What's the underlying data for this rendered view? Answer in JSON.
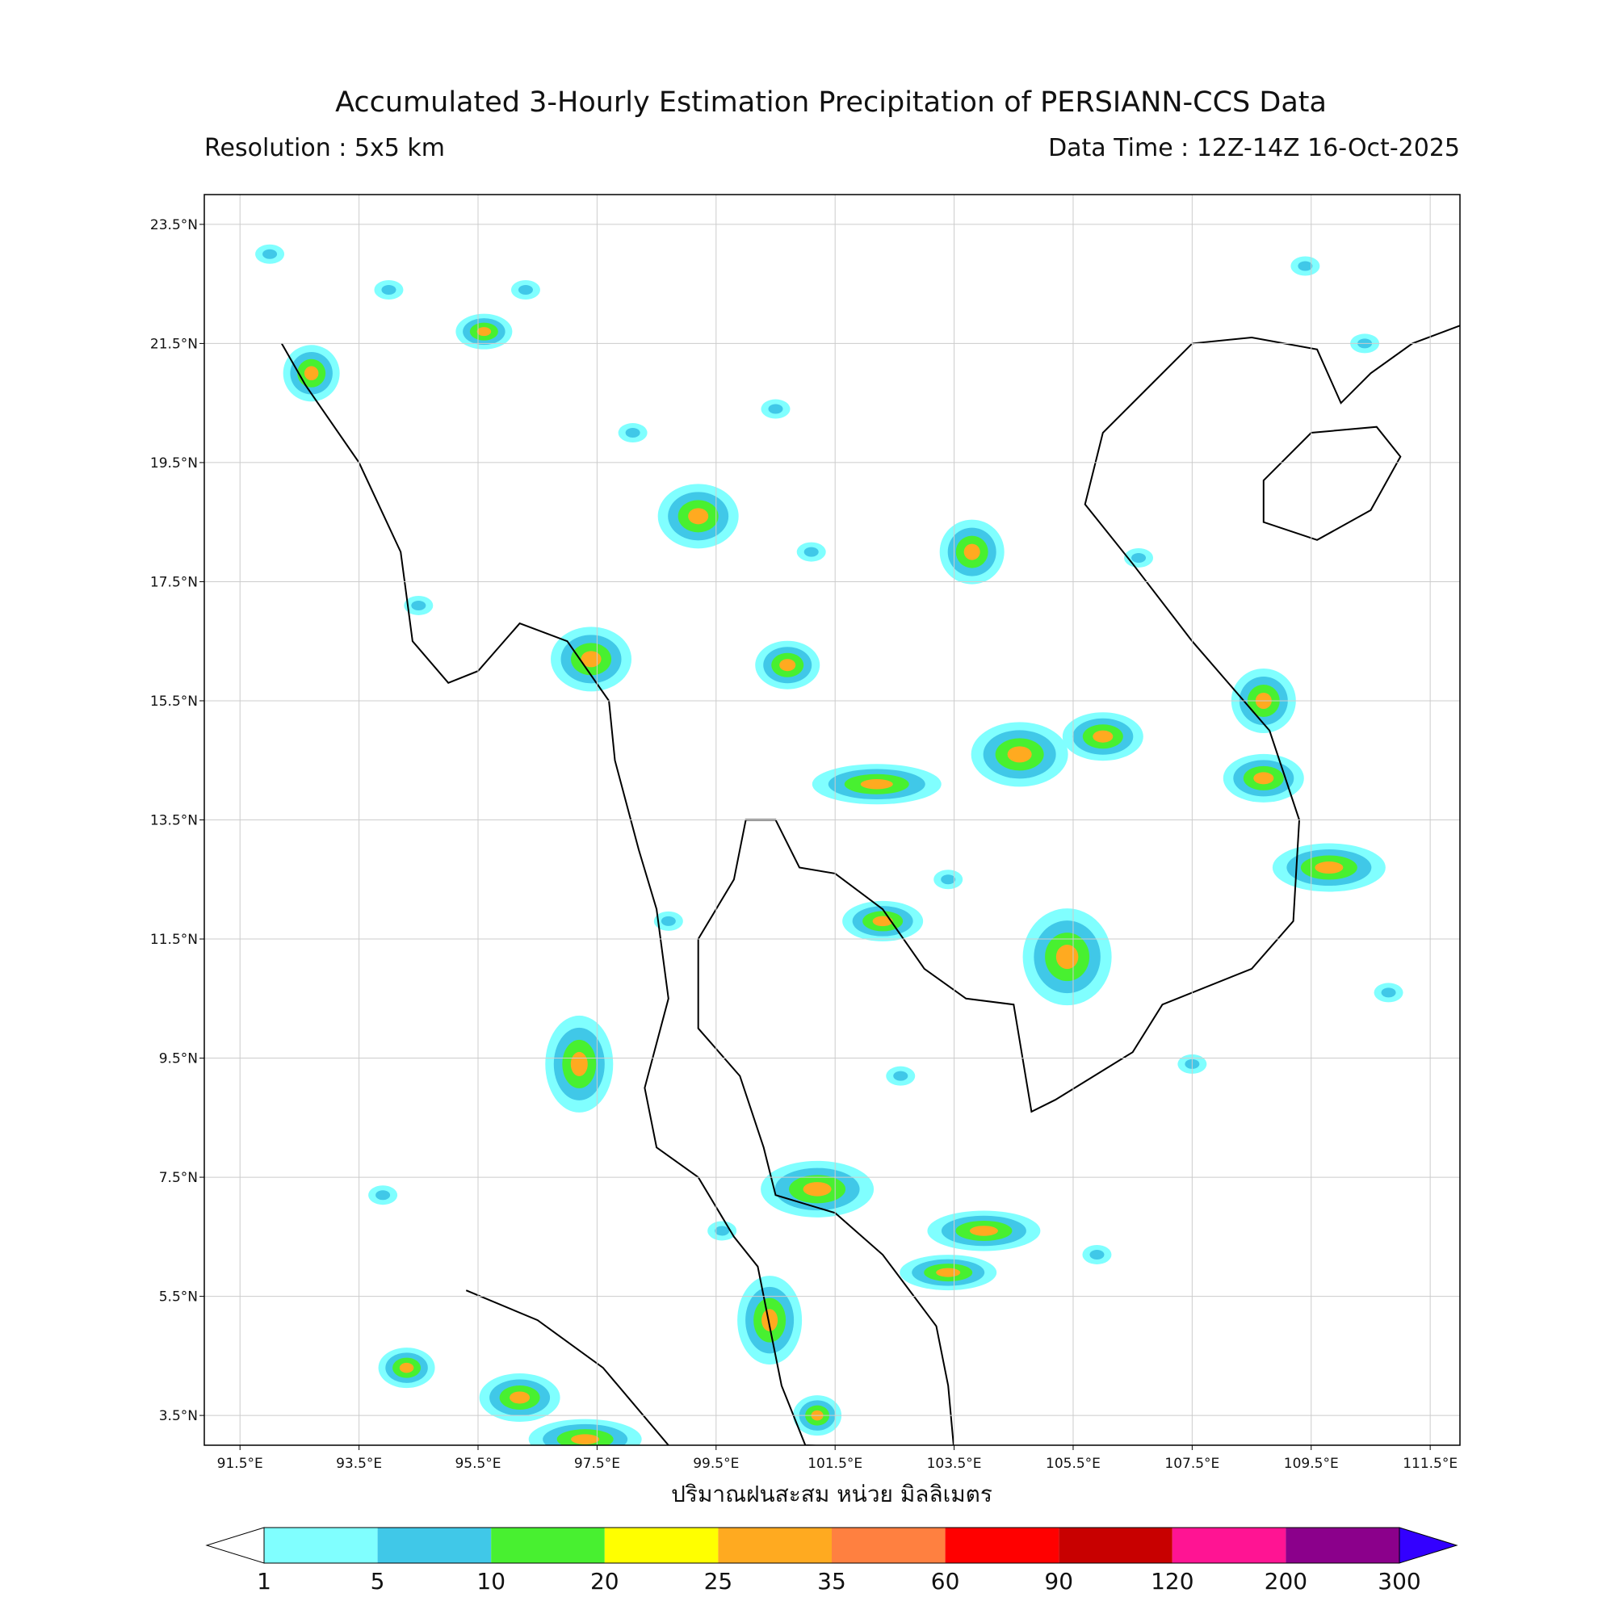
{
  "title": "Accumulated 3-Hourly Estimation Precipitation of PERSIANN-CCS Data",
  "resolution": "Resolution : 5x5 km",
  "data_time": "Data Time : 12Z-14Z 16-Oct-2025",
  "map": {
    "lon_range": [
      90.9,
      112.0
    ],
    "lat_range": [
      3.0,
      24.0
    ],
    "grid": true,
    "lon_ticks": [
      {
        "value": 91.5,
        "label": "91.5°E"
      },
      {
        "value": 93.5,
        "label": "93.5°E"
      },
      {
        "value": 95.5,
        "label": "95.5°E"
      },
      {
        "value": 97.5,
        "label": "97.5°E"
      },
      {
        "value": 99.5,
        "label": "99.5°E"
      },
      {
        "value": 101.5,
        "label": "101.5°E"
      },
      {
        "value": 103.5,
        "label": "103.5°E"
      },
      {
        "value": 105.5,
        "label": "105.5°E"
      },
      {
        "value": 107.5,
        "label": "107.5°E"
      },
      {
        "value": 109.5,
        "label": "109.5°E"
      },
      {
        "value": 111.5,
        "label": "111.5°E"
      }
    ],
    "lat_ticks": [
      {
        "value": 23.5,
        "label": "23.5°N"
      },
      {
        "value": 21.5,
        "label": "21.5°N"
      },
      {
        "value": 19.5,
        "label": "19.5°N"
      },
      {
        "value": 17.5,
        "label": "17.5°N"
      },
      {
        "value": 15.5,
        "label": "15.5°N"
      },
      {
        "value": 13.5,
        "label": "13.5°N"
      },
      {
        "value": 11.5,
        "label": "11.5°N"
      },
      {
        "value": 9.5,
        "label": "9.5°N"
      },
      {
        "value": 7.5,
        "label": "7.5°N"
      },
      {
        "value": 5.5,
        "label": "5.5°N"
      },
      {
        "value": 3.5,
        "label": "3.5°N"
      }
    ]
  },
  "colorbar": {
    "label": "ปริมาณฝนสะสม หน่วย มิลลิเมตร",
    "levels": [
      1,
      5,
      10,
      20,
      25,
      35,
      60,
      90,
      120,
      200,
      300
    ],
    "colors": [
      "#80ffff",
      "#40c8e8",
      "#48f030",
      "#ffff00",
      "#ffaa20",
      "#ff8040",
      "#ff0000",
      "#c80000",
      "#ff1493",
      "#8b008b"
    ],
    "under_color": "#ffffff",
    "over_color": "#3300ff"
  }
}
